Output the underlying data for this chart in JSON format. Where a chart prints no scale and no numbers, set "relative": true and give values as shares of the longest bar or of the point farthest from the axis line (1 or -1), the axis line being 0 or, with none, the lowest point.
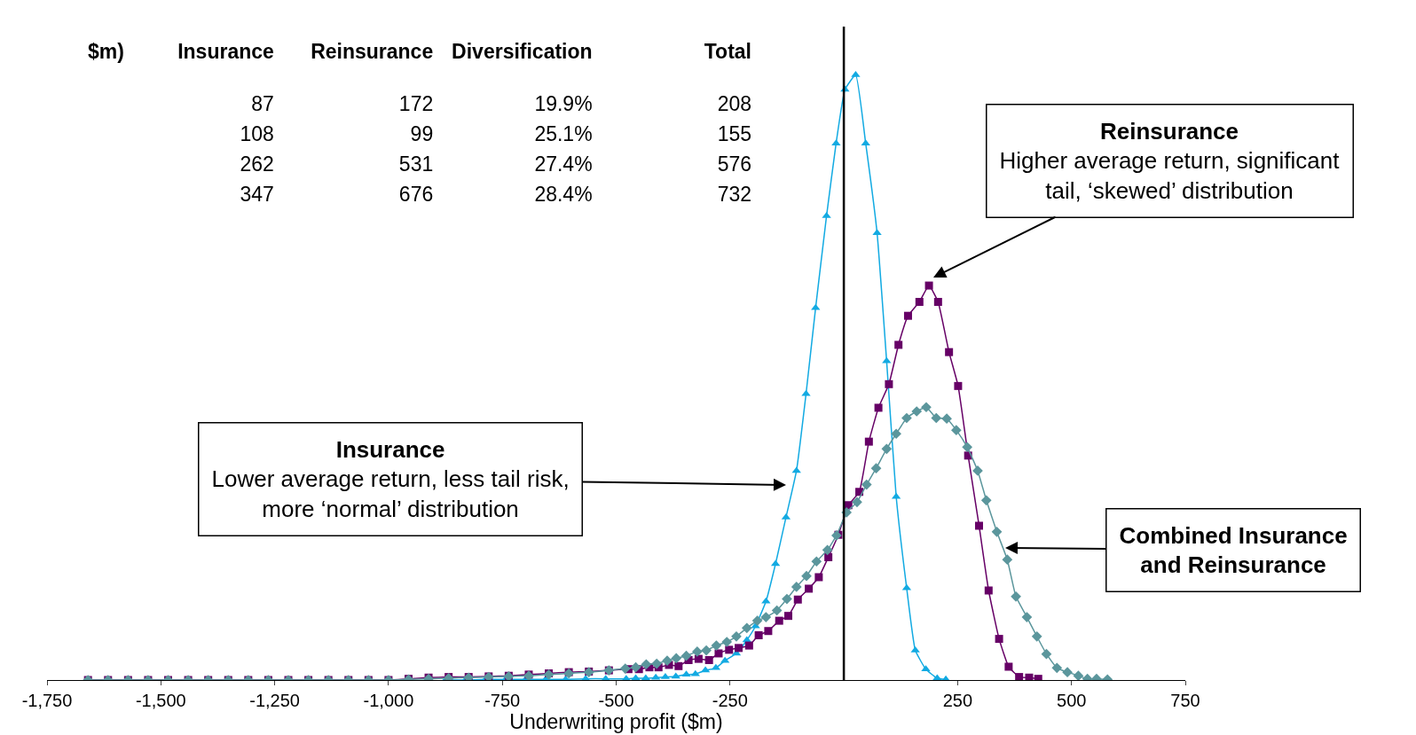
{
  "chart_data": [
    {
      "type": "other",
      "categories": [
        "$m)",
        "Insurance",
        "Reinsurance",
        "Diversification",
        "Total"
      ],
      "cell_labels": [
        [
          null,
          "87",
          "172",
          "19.9%",
          "208"
        ],
        [
          null,
          "108",
          "99",
          "25.1%",
          "155"
        ],
        [
          null,
          "262",
          "531",
          "27.4%",
          "576"
        ],
        [
          null,
          "347",
          "676",
          "28.4%",
          "732"
        ]
      ]
    },
    {
      "type": "line",
      "relative": true,
      "xlabel": "Underwriting profit ($m)",
      "xlim": [
        -1750,
        750
      ],
      "xticks": [
        {
          "value": -1750,
          "label": "-1,750"
        },
        {
          "value": -1500,
          "label": "-1,500"
        },
        {
          "value": -1250,
          "label": "-1,250"
        },
        {
          "value": -1000,
          "label": "-1,000"
        },
        -750,
        -500,
        -250,
        250,
        500,
        750
      ],
      "tick_labels": "x",
      "ref_lines": [
        {
          "axis": "x",
          "value": 0,
          "color": "#000000"
        }
      ],
      "series": [
        {
          "marker": "triangle",
          "color": "#12aae2",
          "x": [
            -875,
            -831,
            -787,
            -743,
            -699,
            -655,
            -611,
            -567,
            -523,
            -478,
            -457,
            -435,
            -413,
            -392,
            -369,
            -346,
            -326,
            -304,
            -281,
            -261,
            -236,
            -213,
            -194,
            -171,
            -150,
            -127,
            -104,
            -83,
            -62,
            -38,
            -17,
            2.5,
            26,
            48,
            73,
            94,
            115,
            138,
            157,
            180,
            205,
            224
          ],
          "values": [
            0,
            0,
            0.001,
            0.001,
            0.001,
            0.001,
            0.001,
            0.002,
            0.002,
            0.002,
            0.003,
            0.003,
            0.004,
            0.005,
            0.006,
            0.009,
            0.01,
            0.016,
            0.02,
            0.032,
            0.044,
            0.066,
            0.089,
            0.13,
            0.192,
            0.269,
            0.346,
            0.473,
            0.615,
            0.767,
            0.887,
            0.976,
            1,
            0.887,
            0.739,
            0.527,
            0.303,
            0.152,
            0.049,
            0.018,
            0.003,
            0.001
          ]
        },
        {
          "marker": "square",
          "color": "#660066",
          "x": [
            -1660,
            -1616,
            -1572,
            -1528,
            -1484,
            -1440,
            -1396,
            -1352,
            -1308,
            -1264,
            -1220,
            -1176,
            -1132,
            -1088,
            -1044,
            -1000,
            -956,
            -912,
            -868,
            -824,
            -780,
            -736,
            -692,
            -648,
            -604,
            -560,
            -516,
            -473,
            -450,
            -427,
            -407,
            -384,
            -363,
            -341,
            -319,
            -296,
            -275,
            -252,
            -231,
            -208,
            -187,
            -166,
            -142,
            -122,
            -101,
            -77,
            -55,
            -34,
            -12,
            10,
            34,
            55,
            76,
            99,
            120,
            141,
            166,
            187,
            207,
            231,
            251,
            273,
            297,
            318,
            341,
            362,
            385,
            407,
            427
          ],
          "values": [
            0,
            0,
            0,
            0,
            0,
            0,
            0,
            0,
            0,
            0,
            0,
            0,
            0,
            0,
            0,
            0,
            0.002,
            0.004,
            0.005,
            0.005,
            0.006,
            0.007,
            0.009,
            0.011,
            0.013,
            0.014,
            0.016,
            0.018,
            0.018,
            0.021,
            0.021,
            0.025,
            0.023,
            0.033,
            0.035,
            0.033,
            0.044,
            0.05,
            0.053,
            0.057,
            0.074,
            0.081,
            0.098,
            0.106,
            0.133,
            0.151,
            0.17,
            0.203,
            0.24,
            0.289,
            0.311,
            0.394,
            0.45,
            0.489,
            0.554,
            0.602,
            0.625,
            0.652,
            0.625,
            0.542,
            0.486,
            0.371,
            0.255,
            0.148,
            0.068,
            0.022,
            0.005,
            0.004,
            0.002
          ]
        },
        {
          "marker": "diamond",
          "color": "#5b969c",
          "x": [
            -1660,
            -1616,
            -1572,
            -1528,
            -1484,
            -1440,
            -1396,
            -1352,
            -1308,
            -1264,
            -1220,
            -1176,
            -1132,
            -1088,
            -1044,
            -1000,
            -956,
            -912,
            -868,
            -824,
            -780,
            -736,
            -692,
            -648,
            -604,
            -560,
            -516,
            -480,
            -457,
            -434,
            -411,
            -388,
            -368,
            -346,
            -322,
            -302,
            -280,
            -257,
            -236,
            -213,
            -190,
            -171,
            -147,
            -125,
            -104,
            -82,
            -60,
            -36,
            -16,
            6,
            29,
            50,
            71,
            94,
            115,
            138,
            160,
            181,
            203,
            226,
            247,
            271,
            294,
            313,
            336,
            359,
            378,
            402,
            424,
            445,
            468,
            491,
            515,
            535,
            555,
            579
          ],
          "values": [
            0,
            0,
            0,
            0,
            0,
            0,
            0,
            0,
            0,
            0,
            0,
            0,
            0,
            0,
            0,
            0,
            0.001,
            0.002,
            0.003,
            0.004,
            0.005,
            0.006,
            0.007,
            0.009,
            0.011,
            0.013,
            0.016,
            0.019,
            0.021,
            0.026,
            0.027,
            0.032,
            0.036,
            0.04,
            0.047,
            0.049,
            0.057,
            0.063,
            0.072,
            0.086,
            0.098,
            0.104,
            0.115,
            0.134,
            0.154,
            0.172,
            0.196,
            0.215,
            0.239,
            0.277,
            0.294,
            0.323,
            0.35,
            0.382,
            0.407,
            0.433,
            0.444,
            0.451,
            0.433,
            0.432,
            0.413,
            0.385,
            0.346,
            0.297,
            0.245,
            0.199,
            0.138,
            0.104,
            0.072,
            0.043,
            0.02,
            0.013,
            0.007,
            0.002,
            0.002,
            0.001
          ]
        }
      ],
      "annotations": [
        "Insurance\nLower average return, less tail risk,\nmore ‘normal’ distribution",
        "Reinsurance\nHigher average return, significant\ntail, ‘skewed’ distribution",
        "Combined Insurance\nand Reinsurance"
      ]
    }
  ]
}
